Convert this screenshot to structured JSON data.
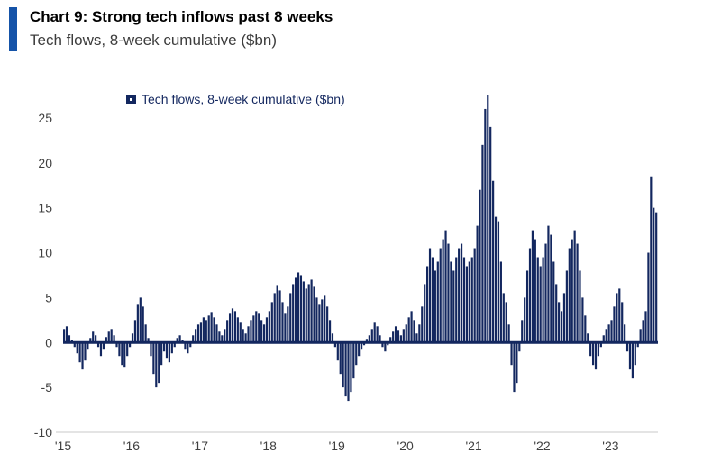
{
  "header": {
    "title": "Chart 9: Strong tech inflows past 8 weeks",
    "subtitle": "Tech flows, 8-week cumulative ($bn)",
    "accent_color": "#1553a8"
  },
  "legend": {
    "label": "Tech flows, 8-week cumulative ($bn)",
    "marker_color": "#13275f"
  },
  "chart_data": {
    "type": "bar",
    "title": "Chart 9: Strong tech inflows past 8 weeks",
    "subtitle": "Tech flows, 8-week cumulative ($bn)",
    "series_name": "Tech flows, 8-week cumulative ($bn)",
    "bar_color": "#13275f",
    "axis_text_color": "#404040",
    "zero_line_color": "#13275f",
    "bottom_line_color": "#c9c9c9",
    "x_start_year": 2015,
    "points_per_year": 26,
    "ylim": [
      -10,
      28.5
    ],
    "yticks": [
      -10,
      -5,
      0,
      5,
      10,
      15,
      20,
      25
    ],
    "xticklabels": [
      "'15",
      "'16",
      "'17",
      "'18",
      "'19",
      "'20",
      "'21",
      "'22",
      "'23"
    ],
    "grid": false,
    "legend_position": "top-left-inside",
    "values": [
      1.5,
      1.8,
      0.8,
      0.3,
      -0.5,
      -1.2,
      -2.2,
      -3.0,
      -2.0,
      -0.8,
      0.5,
      1.2,
      0.8,
      -0.5,
      -1.5,
      -0.8,
      0.6,
      1.2,
      1.5,
      0.8,
      -0.5,
      -1.5,
      -2.5,
      -2.8,
      -1.5,
      -0.5,
      1.0,
      2.5,
      4.2,
      5.0,
      4.0,
      2.0,
      0.5,
      -1.5,
      -3.5,
      -5.0,
      -4.5,
      -2.5,
      -1.0,
      -1.8,
      -2.2,
      -1.2,
      -0.5,
      0.5,
      0.8,
      0.3,
      -0.8,
      -1.2,
      -0.5,
      0.8,
      1.5,
      2.0,
      2.2,
      2.8,
      2.5,
      3.0,
      3.3,
      2.8,
      2.0,
      1.2,
      0.8,
      1.5,
      2.5,
      3.2,
      3.8,
      3.5,
      2.8,
      2.2,
      1.5,
      1.0,
      1.8,
      2.5,
      3.0,
      3.5,
      3.2,
      2.5,
      2.0,
      2.8,
      3.5,
      4.5,
      5.5,
      6.3,
      5.8,
      4.5,
      3.2,
      4.0,
      5.5,
      6.5,
      7.2,
      7.8,
      7.5,
      6.8,
      6.0,
      6.5,
      7.0,
      6.2,
      5.0,
      4.2,
      4.8,
      5.2,
      4.0,
      2.5,
      1.0,
      -0.5,
      -2.0,
      -3.5,
      -5.0,
      -6.0,
      -6.5,
      -5.5,
      -4.0,
      -2.5,
      -1.5,
      -0.8,
      -0.3,
      0.4,
      0.8,
      1.5,
      2.2,
      1.8,
      0.8,
      -0.5,
      -1.0,
      -0.3,
      0.6,
      1.2,
      1.8,
      1.4,
      0.8,
      1.5,
      2.0,
      2.8,
      3.5,
      2.5,
      1.0,
      2.0,
      4.0,
      6.5,
      8.5,
      10.5,
      9.5,
      8.0,
      9.0,
      10.5,
      11.5,
      12.5,
      11.0,
      9.0,
      8.0,
      9.5,
      10.5,
      11.0,
      9.5,
      8.5,
      9.0,
      9.5,
      10.5,
      13.0,
      17.0,
      22.0,
      26.0,
      27.5,
      24.0,
      18.0,
      14.0,
      13.5,
      9.0,
      5.5,
      4.5,
      2.0,
      -2.5,
      -5.5,
      -4.5,
      -1.0,
      2.5,
      5.0,
      8.0,
      10.5,
      12.5,
      11.5,
      9.5,
      8.5,
      9.5,
      11.0,
      13.0,
      12.0,
      9.0,
      6.5,
      4.5,
      3.5,
      5.5,
      8.0,
      10.5,
      11.5,
      12.5,
      11.0,
      8.0,
      5.0,
      3.0,
      1.0,
      -1.5,
      -2.5,
      -3.0,
      -1.5,
      -0.5,
      0.8,
      1.5,
      2.0,
      2.5,
      4.0,
      5.5,
      6.0,
      4.5,
      2.0,
      -1.0,
      -3.0,
      -4.0,
      -2.5,
      -0.5,
      1.5,
      2.5,
      3.5,
      10.0,
      18.5,
      15.0,
      14.5
    ]
  }
}
